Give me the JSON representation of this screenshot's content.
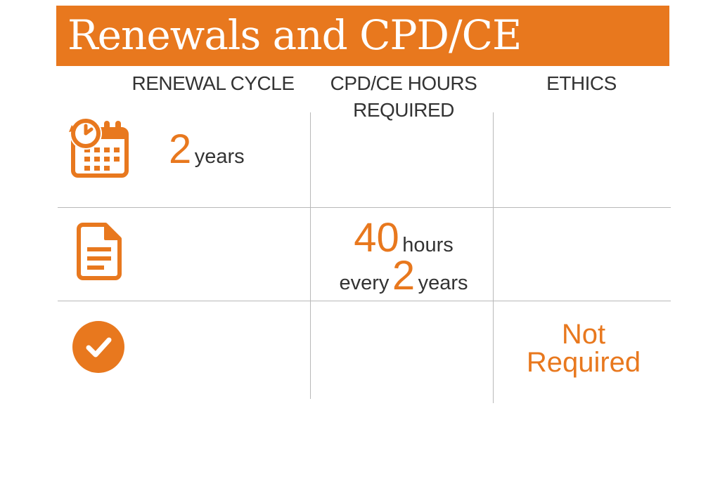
{
  "title": "Renewals and CPD/CE",
  "columns": {
    "renewal": "RENEWAL CYCLE",
    "cpd_line1": "CPD/CE HOURS",
    "cpd_line2": "REQUIRED",
    "ethics": "ETHICS"
  },
  "renewal": {
    "number": "2",
    "unit": "years"
  },
  "cpd": {
    "number": "40",
    "unit": "hours",
    "prefix": "every",
    "period_number": "2",
    "period_unit": "years"
  },
  "ethics": {
    "line1": "Not",
    "line2": "Required"
  },
  "icons": [
    "calendar-clock-icon",
    "document-icon",
    "checkmark-circle-icon"
  ],
  "colors": {
    "accent": "#e8781e",
    "text": "#333333",
    "grid": "#b9b9b9"
  }
}
